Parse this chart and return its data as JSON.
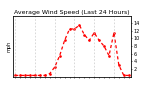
{
  "title": "Average Wind Speed (Last 24 Hours)",
  "ylabel_left": "mph",
  "background_color": "#ffffff",
  "grid_color": "#bbbbbb",
  "line_color": "#ff0000",
  "x_values": [
    0,
    1,
    2,
    3,
    4,
    5,
    6,
    7,
    8,
    9,
    10,
    11,
    12,
    13,
    14,
    15,
    16,
    17,
    18,
    19,
    20,
    21,
    22,
    23
  ],
  "y_values": [
    0.3,
    0.3,
    0.3,
    0.3,
    0.3,
    0.3,
    0.3,
    0.8,
    2.5,
    5.5,
    9.5,
    12.5,
    12.5,
    13.5,
    11.0,
    9.5,
    11.5,
    9.5,
    8.0,
    5.5,
    11.5,
    3.0,
    0.3,
    0.3
  ],
  "ylim": [
    0,
    16
  ],
  "yticks_right": [
    2,
    4,
    6,
    8,
    10,
    12,
    14
  ],
  "xlim": [
    -0.5,
    23.5
  ],
  "x_grid_positions": [
    0,
    4,
    8,
    12,
    16,
    20
  ],
  "xtick_positions": [
    0,
    1,
    2,
    3,
    4,
    5,
    6,
    7,
    8,
    9,
    10,
    11,
    12,
    13,
    14,
    15,
    16,
    17,
    18,
    19,
    20,
    21,
    22,
    23
  ],
  "xtick_labels": [
    "",
    "",
    "",
    "",
    "",
    "",
    "",
    "",
    "",
    "",
    "",
    "",
    "",
    "",
    "",
    "",
    "",
    "",
    "",
    "",
    "",
    "",
    "",
    ""
  ],
  "title_fontsize": 4.5,
  "ylabel_fontsize": 3.5,
  "ytick_fontsize": 3.5,
  "xtick_fontsize": 3.0,
  "line_width": 0.9,
  "marker_size": 1.8
}
